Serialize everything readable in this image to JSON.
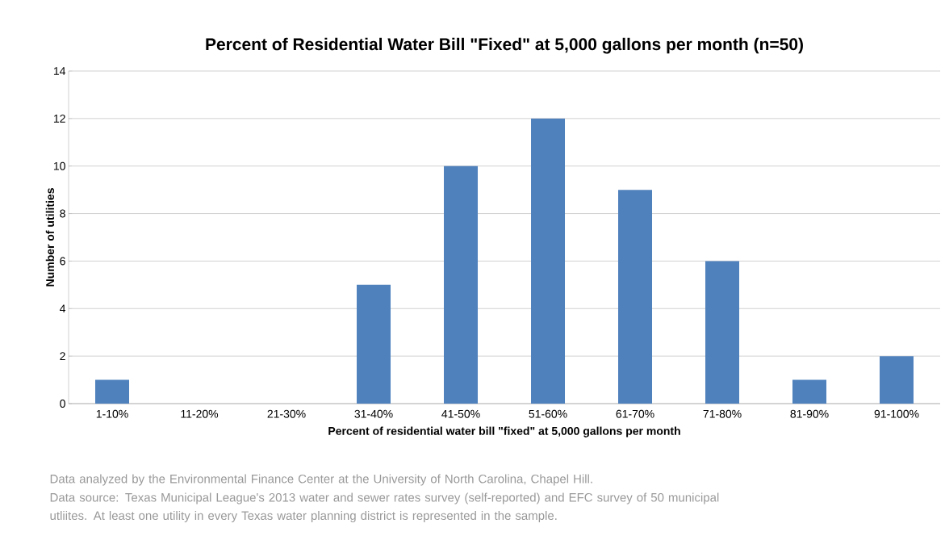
{
  "chart_data": {
    "type": "bar",
    "title": "Percent of Residential Water Bill \"Fixed\" at 5,000 gallons per month (n=50)",
    "xlabel": "Percent of residential water bill \"fixed\" at 5,000 gallons per month",
    "ylabel": "Number of utilities",
    "categories": [
      "1-10%",
      "11-20%",
      "21-30%",
      "31-40%",
      "41-50%",
      "51-60%",
      "61-70%",
      "71-80%",
      "81-90%",
      "91-100%"
    ],
    "values": [
      1,
      0,
      0,
      5,
      10,
      12,
      9,
      6,
      1,
      2
    ],
    "color": "#4f81bd",
    "ylim": [
      0,
      14
    ],
    "yticks": [
      0,
      2,
      4,
      6,
      8,
      10,
      12,
      14
    ],
    "grid": "y",
    "annotations": [
      "Data analyzed by the Environmental Finance Center at the University of North Carolina, Chapel Hill.",
      "Data source: Texas Municipal League's 2013 water and sewer rates survey (self-reported) and EFC survey of 50 municipal utliites. At least one utility in every Texas water planning district is represented in the sample."
    ]
  }
}
